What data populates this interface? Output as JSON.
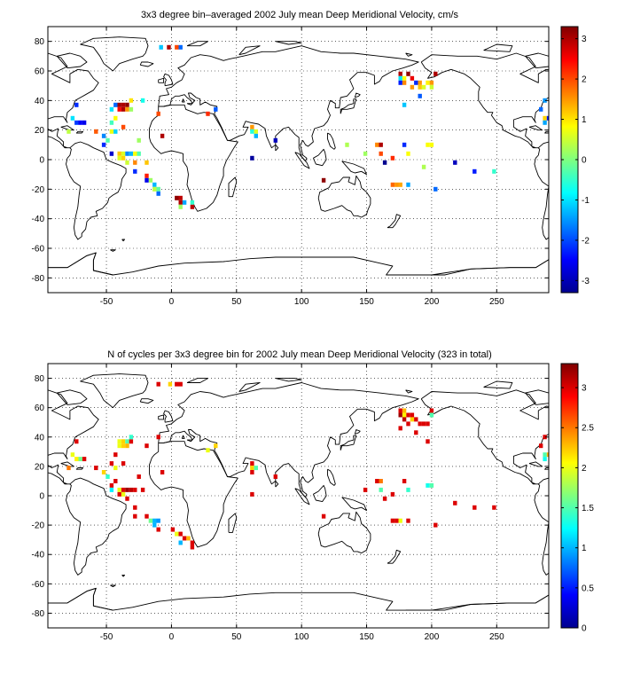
{
  "chart_data": [
    {
      "type": "heatmap",
      "title": "3x3 degree bin–averaged 2002 July mean Deep Meridional Velocity, cm/s",
      "xlim": [
        -95,
        290
      ],
      "ylim": [
        -90,
        90
      ],
      "xticks": [
        -50,
        0,
        50,
        100,
        150,
        200,
        250
      ],
      "yticks": [
        80,
        60,
        40,
        20,
        0,
        -20,
        -40,
        -60,
        -80
      ],
      "grid": true,
      "colorbar": {
        "range": [
          -3.3,
          3.3
        ],
        "ticks": [
          3,
          2,
          1,
          0,
          -1,
          -2,
          -3
        ],
        "colormap": "jet"
      },
      "cells": [
        [
          -8,
          76,
          -1.2
        ],
        [
          -2,
          76,
          3
        ],
        [
          4,
          76,
          2
        ],
        [
          7,
          76,
          -1.8
        ],
        [
          -73,
          37,
          -2.2
        ],
        [
          -76,
          28,
          -1
        ],
        [
          -73,
          25,
          -2.1
        ],
        [
          -70,
          25,
          -2.5
        ],
        [
          -67,
          25,
          -2.6
        ],
        [
          -79,
          19,
          0.4
        ],
        [
          -40,
          37,
          3.1
        ],
        [
          -37,
          37,
          3
        ],
        [
          -34,
          37,
          3.2
        ],
        [
          -40,
          34,
          2.5
        ],
        [
          -37,
          34,
          3
        ],
        [
          -34,
          34,
          1.5
        ],
        [
          -31,
          34,
          0.2
        ],
        [
          -46,
          34,
          -1
        ],
        [
          -43,
          37,
          -1.8
        ],
        [
          -31,
          40,
          1
        ],
        [
          -22,
          40,
          -0.7
        ],
        [
          -10,
          31,
          2
        ],
        [
          -43,
          28,
          0.8
        ],
        [
          -46,
          25,
          -0.4
        ],
        [
          -46,
          19,
          0.7
        ],
        [
          -43,
          19,
          -1.1
        ],
        [
          -37,
          22,
          2
        ],
        [
          -58,
          19,
          1.9
        ],
        [
          -52,
          16,
          -1.6
        ],
        [
          -49,
          13,
          -0.3
        ],
        [
          -52,
          10,
          -2.2
        ],
        [
          -46,
          4,
          -2.8
        ],
        [
          -40,
          4,
          1.2
        ],
        [
          -37,
          4,
          0.6
        ],
        [
          -34,
          4,
          -1.6
        ],
        [
          -31,
          4,
          -1.3
        ],
        [
          -28,
          4,
          0.8
        ],
        [
          -25,
          4,
          -0.3
        ],
        [
          -40,
          1,
          0.6
        ],
        [
          -37,
          1,
          1.1
        ],
        [
          -34,
          -2,
          0.5
        ],
        [
          -28,
          -2,
          1.6
        ],
        [
          -19,
          -2,
          1.2
        ],
        [
          -28,
          -8,
          -2.2
        ],
        [
          -19,
          -11,
          2.3
        ],
        [
          -16,
          -14,
          0.2
        ],
        [
          -13,
          -17,
          -1.3
        ],
        [
          -13,
          -20,
          0.4
        ],
        [
          -10,
          -20,
          -0.2
        ],
        [
          -10,
          -23,
          -1.8
        ],
        [
          4,
          -26,
          3.2
        ],
        [
          7,
          -26,
          2.9
        ],
        [
          7,
          -29,
          3
        ],
        [
          10,
          -29,
          -1.4
        ],
        [
          16,
          -29,
          -0.5
        ],
        [
          16,
          -32,
          2.9
        ],
        [
          7,
          -32,
          0.2
        ],
        [
          -19,
          -14,
          -2.6
        ],
        [
          62,
          22,
          1.5
        ],
        [
          62,
          19,
          -0.6
        ],
        [
          65,
          19,
          0.6
        ],
        [
          65,
          16,
          -1.3
        ],
        [
          62,
          1,
          -3.1
        ],
        [
          80,
          13,
          -2.9
        ],
        [
          117,
          -14,
          3.2
        ],
        [
          135,
          10,
          0.3
        ],
        [
          149,
          4,
          0.2
        ],
        [
          158,
          10,
          1.6
        ],
        [
          161,
          10,
          3
        ],
        [
          161,
          4,
          2
        ],
        [
          164,
          -2,
          -3.2
        ],
        [
          170,
          1,
          2.2
        ],
        [
          179,
          10,
          -2.2
        ],
        [
          182,
          4,
          0.8
        ],
        [
          170,
          -17,
          1.8
        ],
        [
          173,
          -17,
          1.5
        ],
        [
          176,
          -17,
          1.4
        ],
        [
          182,
          -17,
          -1.4
        ],
        [
          194,
          -5,
          0.3
        ],
        [
          197,
          10,
          0.8
        ],
        [
          200,
          10,
          0.8
        ],
        [
          203,
          -20,
          -1.8
        ],
        [
          218,
          -2,
          -2.9
        ],
        [
          233,
          -8,
          -2.3
        ],
        [
          248,
          -8,
          -0.5
        ],
        [
          176,
          58,
          3
        ],
        [
          176,
          55,
          -1
        ],
        [
          176,
          52,
          -2.3
        ],
        [
          179,
          55,
          0.8
        ],
        [
          179,
          52,
          1.6
        ],
        [
          182,
          58,
          3.2
        ],
        [
          185,
          55,
          2.6
        ],
        [
          185,
          49,
          1.5
        ],
        [
          188,
          52,
          -2.2
        ],
        [
          191,
          52,
          1.5
        ],
        [
          191,
          49,
          1.2
        ],
        [
          194,
          49,
          0.6
        ],
        [
          197,
          52,
          0.9
        ],
        [
          200,
          52,
          1.5
        ],
        [
          200,
          49,
          0.5
        ],
        [
          203,
          58,
          3
        ],
        [
          179,
          37,
          -1.2
        ],
        [
          191,
          43,
          -1.9
        ],
        [
          287,
          40,
          -1.5
        ],
        [
          284,
          34,
          -1.8
        ],
        [
          287,
          28,
          1.1
        ],
        [
          290,
          28,
          -2.3
        ],
        [
          287,
          25,
          -1.4
        ],
        [
          -25,
          13,
          0.2
        ],
        [
          -7,
          16,
          3
        ],
        [
          28,
          31,
          2.2
        ],
        [
          34,
          34,
          -1.9
        ]
      ]
    },
    {
      "type": "heatmap",
      "title": "N of cycles per 3x3 degree bin for 2002 July mean Deep Meridional Velocity (323 in total)",
      "xlim": [
        -95,
        290
      ],
      "ylim": [
        -90,
        90
      ],
      "xticks": [
        -50,
        0,
        50,
        100,
        150,
        200,
        250
      ],
      "yticks": [
        80,
        60,
        40,
        20,
        0,
        -20,
        -40,
        -60,
        -80
      ],
      "grid": true,
      "colorbar": {
        "range": [
          0,
          3.3
        ],
        "ticks": [
          3,
          2.5,
          2,
          1.5,
          1,
          0.5,
          0
        ],
        "colormap": "jet"
      },
      "cells": [
        [
          -10,
          76,
          3
        ],
        [
          -1,
          76,
          2.2
        ],
        [
          4,
          76,
          3
        ],
        [
          7,
          76,
          3
        ],
        [
          -73,
          37,
          3
        ],
        [
          -76,
          28,
          2
        ],
        [
          -73,
          25,
          2.1
        ],
        [
          -70,
          25,
          1.6
        ],
        [
          -67,
          25,
          3
        ],
        [
          -79,
          19,
          2.5
        ],
        [
          -40,
          37,
          2
        ],
        [
          -37,
          37,
          2.2
        ],
        [
          -34,
          37,
          1.5
        ],
        [
          -40,
          34,
          2
        ],
        [
          -37,
          34,
          2.2
        ],
        [
          -34,
          34,
          2.3
        ],
        [
          -31,
          37,
          3
        ],
        [
          -19,
          34,
          3
        ],
        [
          -10,
          40,
          3
        ],
        [
          -43,
          28,
          3
        ],
        [
          -46,
          22,
          3
        ],
        [
          -43,
          19,
          2
        ],
        [
          -37,
          22,
          3
        ],
        [
          -58,
          19,
          3
        ],
        [
          -52,
          16,
          2.2
        ],
        [
          -49,
          13,
          1.4
        ],
        [
          -46,
          7,
          3
        ],
        [
          -46,
          4,
          1.2
        ],
        [
          -40,
          4,
          2
        ],
        [
          -37,
          4,
          3
        ],
        [
          -34,
          4,
          3.2
        ],
        [
          -31,
          4,
          3.1
        ],
        [
          -28,
          4,
          3
        ],
        [
          -40,
          1,
          3
        ],
        [
          -37,
          1,
          2
        ],
        [
          -34,
          -2,
          3
        ],
        [
          -28,
          -8,
          3
        ],
        [
          -19,
          -14,
          3
        ],
        [
          -16,
          -17,
          1.6
        ],
        [
          -13,
          -17,
          1
        ],
        [
          -10,
          -17,
          0.9
        ],
        [
          -13,
          -20,
          1
        ],
        [
          -10,
          -23,
          3
        ],
        [
          -22,
          4,
          3
        ],
        [
          -43,
          10,
          3
        ],
        [
          1,
          -23,
          3
        ],
        [
          4,
          -26,
          2
        ],
        [
          7,
          -26,
          3
        ],
        [
          10,
          -29,
          3
        ],
        [
          7,
          -32,
          1
        ],
        [
          13,
          -29,
          2.3
        ],
        [
          16,
          -32,
          3
        ],
        [
          16,
          -35,
          3
        ],
        [
          -28,
          -14,
          3
        ],
        [
          62,
          22,
          3
        ],
        [
          62,
          19,
          2.2
        ],
        [
          65,
          19,
          1.5
        ],
        [
          62,
          16,
          3
        ],
        [
          62,
          1,
          3
        ],
        [
          80,
          13,
          3
        ],
        [
          117,
          -14,
          3
        ],
        [
          149,
          4,
          3
        ],
        [
          158,
          10,
          3
        ],
        [
          161,
          10,
          2.5
        ],
        [
          161,
          4,
          1.5
        ],
        [
          164,
          -2,
          3
        ],
        [
          170,
          1,
          3
        ],
        [
          179,
          10,
          3
        ],
        [
          182,
          4,
          1.4
        ],
        [
          170,
          -17,
          3
        ],
        [
          173,
          -17,
          3
        ],
        [
          176,
          -17,
          2
        ],
        [
          182,
          -17,
          3
        ],
        [
          203,
          -20,
          3
        ],
        [
          197,
          7,
          1.3
        ],
        [
          200,
          7,
          1.5
        ],
        [
          218,
          -5,
          3
        ],
        [
          233,
          -8,
          3
        ],
        [
          248,
          -8,
          3
        ],
        [
          176,
          58,
          3
        ],
        [
          179,
          58,
          2.3
        ],
        [
          176,
          55,
          3.2
        ],
        [
          179,
          55,
          2.1
        ],
        [
          182,
          55,
          3
        ],
        [
          185,
          55,
          3
        ],
        [
          179,
          52,
          3.1
        ],
        [
          185,
          52,
          2.2
        ],
        [
          188,
          52,
          3
        ],
        [
          191,
          49,
          3
        ],
        [
          194,
          49,
          3
        ],
        [
          197,
          49,
          3
        ],
        [
          200,
          58,
          3
        ],
        [
          200,
          55,
          1.5
        ],
        [
          182,
          49,
          3
        ],
        [
          176,
          46,
          3
        ],
        [
          188,
          43,
          3
        ],
        [
          197,
          37,
          3
        ],
        [
          287,
          40,
          3
        ],
        [
          284,
          34,
          3
        ],
        [
          287,
          28,
          1.5
        ],
        [
          290,
          28,
          2.3
        ],
        [
          287,
          25,
          1.3
        ],
        [
          -25,
          13,
          3
        ],
        [
          -7,
          16,
          3
        ],
        [
          28,
          31,
          2
        ],
        [
          34,
          34,
          2.2
        ],
        [
          -31,
          40,
          1.4
        ]
      ]
    }
  ]
}
